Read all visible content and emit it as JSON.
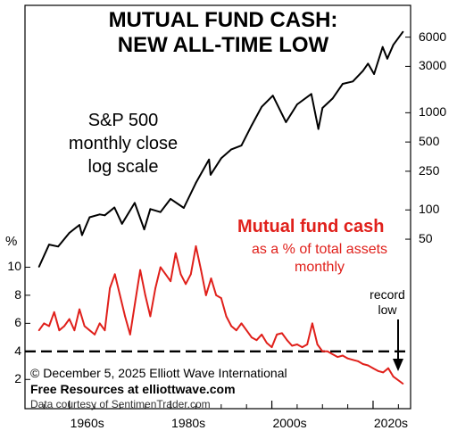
{
  "chart_data": {
    "type": "line",
    "title_lines": [
      "MUTUAL FUND CASH:",
      "NEW ALL-TIME LOW"
    ],
    "sp500_label": [
      "S&P 500",
      "monthly close",
      "log scale"
    ],
    "mf_label": {
      "title": "Mutual fund cash",
      "subtitle": [
        "as a % of total assets",
        "monthly"
      ]
    },
    "annotation": [
      "record",
      "low"
    ],
    "footer": {
      "copyright": "© December 5, 2025  Elliott Wave International",
      "resources": "Free Resources at elliottwave.com",
      "courtesy": "Data courtesy of SentimenTrader.com"
    },
    "x_axis": {
      "ticks": [
        1960,
        1980,
        2000,
        2020
      ],
      "tick_labels": [
        "1960s",
        "1980s",
        "2000s",
        "2020s"
      ],
      "range": [
        1953,
        2026
      ]
    },
    "left_axis": {
      "label": "%",
      "ticks": [
        2,
        4,
        6,
        8,
        10
      ],
      "range": [
        1,
        12
      ]
    },
    "right_axis": {
      "scale": "log",
      "ticks": [
        50,
        100,
        250,
        500,
        1000,
        3000,
        6000
      ],
      "tick_labels": [
        "50",
        "100",
        "250",
        "500",
        "1000",
        "3000",
        "6000"
      ],
      "range": [
        15,
        8000
      ]
    },
    "reference_line": {
      "value": 4,
      "style": "dashed",
      "color": "#000000"
    },
    "series": [
      {
        "name": "S&P 500",
        "axis": "right",
        "color": "#000000",
        "x": [
          1954,
          1956,
          1957.8,
          1960,
          1962,
          1962.5,
          1964,
          1966,
          1967,
          1968.9,
          1970.4,
          1972.9,
          1974.8,
          1976,
          1978,
          1980,
          1982.6,
          1985,
          1987.6,
          1987.9,
          1990,
          1992,
          1994,
          1996,
          1998,
          2000.2,
          2002.8,
          2005,
          2007.8,
          2009.2,
          2010,
          2012,
          2014,
          2016,
          2018,
          2019,
          2020.2,
          2021.9,
          2022.8,
          2024,
          2025.9
        ],
        "y": [
          26,
          44,
          42,
          58,
          70,
          55,
          84,
          90,
          88,
          106,
          72,
          118,
          63,
          102,
          95,
          130,
          105,
          190,
          330,
          230,
          340,
          420,
          460,
          740,
          1150,
          1500,
          800,
          1220,
          1560,
          680,
          1120,
          1400,
          1980,
          2100,
          2700,
          3200,
          2500,
          4750,
          3600,
          5000,
          6800
        ]
      },
      {
        "name": "Mutual fund cash",
        "axis": "left",
        "color": "#e0201b",
        "x": [
          1954,
          1955,
          1956,
          1957,
          1958,
          1959,
          1960,
          1961,
          1962,
          1963,
          1964,
          1965,
          1966,
          1967,
          1968,
          1969,
          1970,
          1971,
          1972,
          1973,
          1974,
          1975,
          1976,
          1977,
          1978,
          1979,
          1980,
          1981,
          1982,
          1983,
          1984,
          1985,
          1986,
          1987,
          1988,
          1989,
          1990,
          1991,
          1992,
          1993,
          1994,
          1995,
          1996,
          1997,
          1998,
          1999,
          2000,
          2001,
          2002,
          2003,
          2004,
          2005,
          2006,
          2007,
          2008,
          2009,
          2010,
          2011,
          2012,
          2013,
          2014,
          2015,
          2016,
          2017,
          2018,
          2019,
          2020,
          2021,
          2022,
          2023,
          2024,
          2025.9
        ],
        "y": [
          5.5,
          6.0,
          5.8,
          6.8,
          5.5,
          5.8,
          6.3,
          5.5,
          7.0,
          5.8,
          5.5,
          5.2,
          6.0,
          5.5,
          8.5,
          9.5,
          8.0,
          6.5,
          5.2,
          7.5,
          9.8,
          8.0,
          6.5,
          8.5,
          10.0,
          9.5,
          9.0,
          11.0,
          9.5,
          8.8,
          9.5,
          11.5,
          9.8,
          8.0,
          9.2,
          8.0,
          7.8,
          6.5,
          5.8,
          5.5,
          6.0,
          5.5,
          5.0,
          4.8,
          5.2,
          4.6,
          4.3,
          5.2,
          5.3,
          4.8,
          4.4,
          4.5,
          4.3,
          4.5,
          6.0,
          4.5,
          4.0,
          4.0,
          3.8,
          3.6,
          3.7,
          3.5,
          3.4,
          3.3,
          3.1,
          3.0,
          2.8,
          2.6,
          2.5,
          2.8,
          2.2,
          1.7
        ]
      }
    ]
  }
}
